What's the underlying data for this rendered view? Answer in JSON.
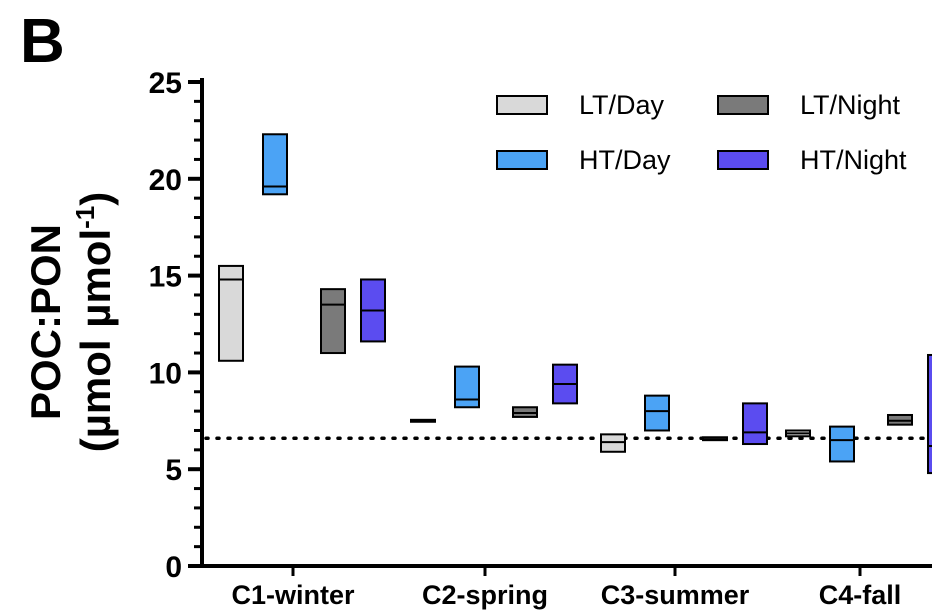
{
  "figure": {
    "panel_label": "B"
  },
  "chart_data": {
    "type": "floating-bar",
    "ylabel_line1": "POC:PON",
    "ylabel_line2": "(µmol µmol",
    "ylabel_sup": "-1",
    "ylabel_close": ")",
    "ylim": [
      0,
      25
    ],
    "yticks": [
      0,
      5,
      10,
      15,
      20,
      25
    ],
    "grid": false,
    "legend_position": "top-right",
    "categories": [
      "C1-winter",
      "C2-spring",
      "C3-summer",
      "C4-fall"
    ],
    "reference_line": {
      "y": 6.6,
      "style": "dotted"
    },
    "series": [
      {
        "name": "LT/Day",
        "color": "#d9d9d9",
        "bars": [
          {
            "min": 10.6,
            "max": 15.5,
            "median": 14.8
          },
          {
            "min": 7.45,
            "max": 7.55,
            "median": 7.5
          },
          {
            "min": 5.9,
            "max": 6.8,
            "median": 6.4
          },
          {
            "min": 6.7,
            "max": 7.0,
            "median": 6.85
          }
        ]
      },
      {
        "name": "HT/Day",
        "color": "#4ba3f5",
        "bars": [
          {
            "min": 19.2,
            "max": 22.3,
            "median": 19.6
          },
          {
            "min": 8.2,
            "max": 10.3,
            "median": 8.6
          },
          {
            "min": 7.0,
            "max": 8.8,
            "median": 8.0
          },
          {
            "min": 5.4,
            "max": 7.2,
            "median": 6.5
          }
        ]
      },
      {
        "name": "LT/Night",
        "color": "#7a7a7a",
        "bars": [
          {
            "min": 11.0,
            "max": 14.3,
            "median": 13.5
          },
          {
            "min": 7.7,
            "max": 8.2,
            "median": 7.9
          },
          {
            "min": 6.5,
            "max": 6.65,
            "median": 6.55
          },
          {
            "min": 7.3,
            "max": 7.8,
            "median": 7.5
          }
        ]
      },
      {
        "name": "HT/Night",
        "color": "#5b4cf0",
        "bars": [
          {
            "min": 11.6,
            "max": 14.8,
            "median": 13.2
          },
          {
            "min": 8.4,
            "max": 10.4,
            "median": 9.4
          },
          {
            "min": 6.3,
            "max": 8.4,
            "median": 6.9
          },
          {
            "min": 4.8,
            "max": 10.9,
            "median": 6.2
          }
        ]
      }
    ]
  }
}
